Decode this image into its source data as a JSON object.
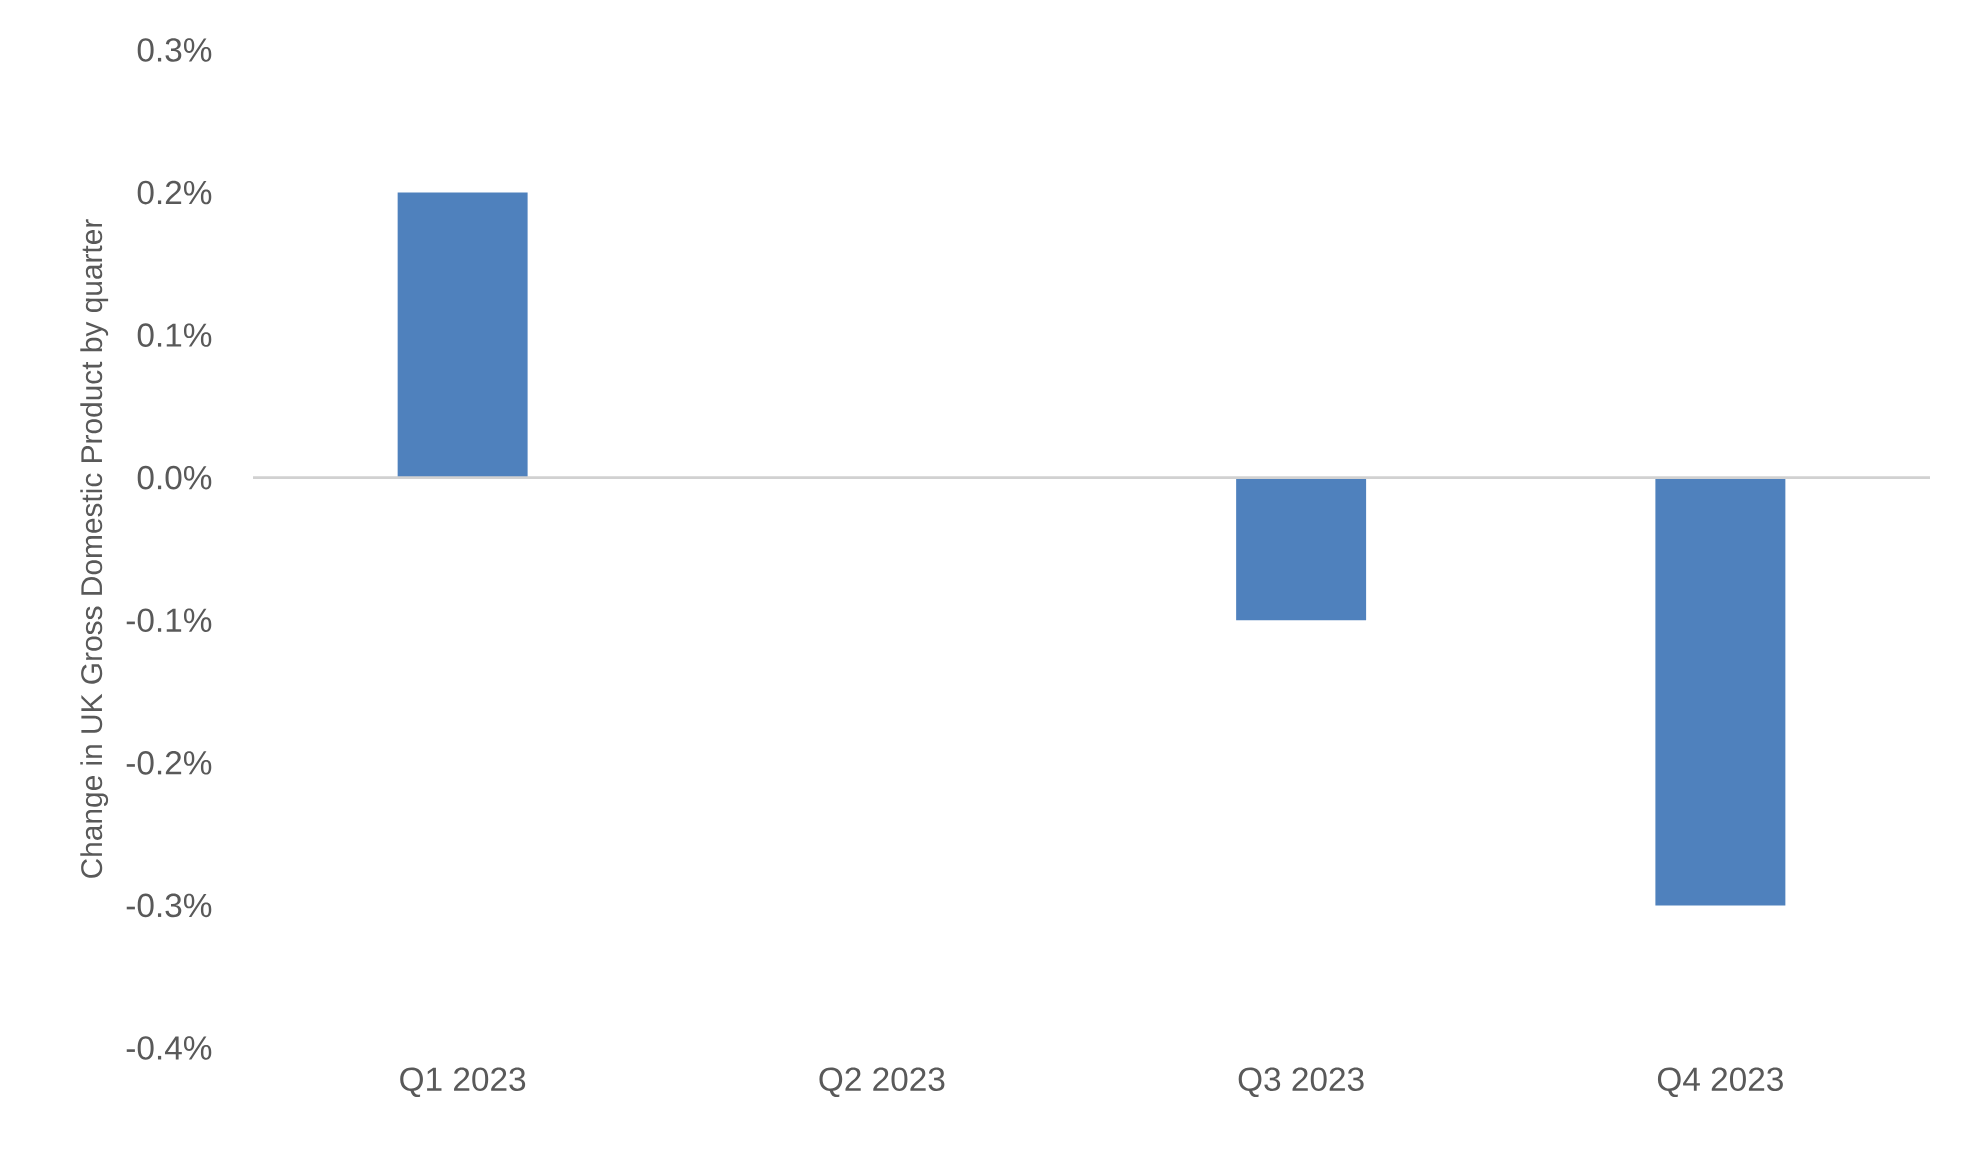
{
  "chart_data": {
    "type": "bar",
    "ylabel": "Change in UK Gross Domestic Product by quarter",
    "categories": [
      "Q1 2023",
      "Q2 2023",
      "Q3 2023",
      "Q4 2023"
    ],
    "values": [
      0.2,
      0.0,
      -0.1,
      -0.3
    ],
    "color": "#4f81bd",
    "ylim": [
      -0.4,
      0.3
    ],
    "yticks": [
      {
        "value": -0.4,
        "label": "-0.4%"
      },
      {
        "value": -0.3,
        "label": "-0.3%"
      },
      {
        "value": -0.2,
        "label": "-0.2%"
      },
      {
        "value": -0.1,
        "label": "-0.1%"
      },
      {
        "value": 0.0,
        "label": "0.0%"
      },
      {
        "value": 0.1,
        "label": "0.1%"
      },
      {
        "value": 0.2,
        "label": "0.2%"
      },
      {
        "value": 0.3,
        "label": "0.3%"
      }
    ]
  }
}
